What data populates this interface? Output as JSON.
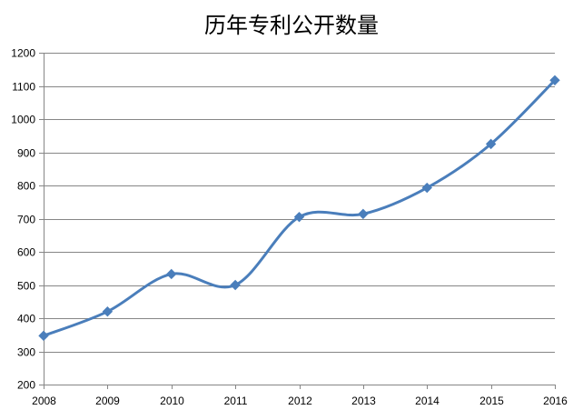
{
  "chart_data": {
    "type": "line",
    "title": "历年专利公开数量",
    "xlabel": "",
    "ylabel": "",
    "x": [
      "2008",
      "2009",
      "2010",
      "2011",
      "2012",
      "2013",
      "2014",
      "2015",
      "2016"
    ],
    "series": [
      {
        "values": [
          347,
          420,
          533,
          500,
          705,
          714,
          793,
          925,
          1117
        ]
      }
    ],
    "ylim": [
      200,
      1200
    ],
    "yticks": [
      "200",
      "300",
      "400",
      "500",
      "600",
      "700",
      "800",
      "900",
      "1000",
      "1100",
      "1200"
    ],
    "grid": "horizontal",
    "smooth": true,
    "marker": "diamond",
    "legend": "none",
    "colors": {
      "line": "#4A7EBB",
      "grid": "#868686",
      "axis": "#868686"
    }
  }
}
